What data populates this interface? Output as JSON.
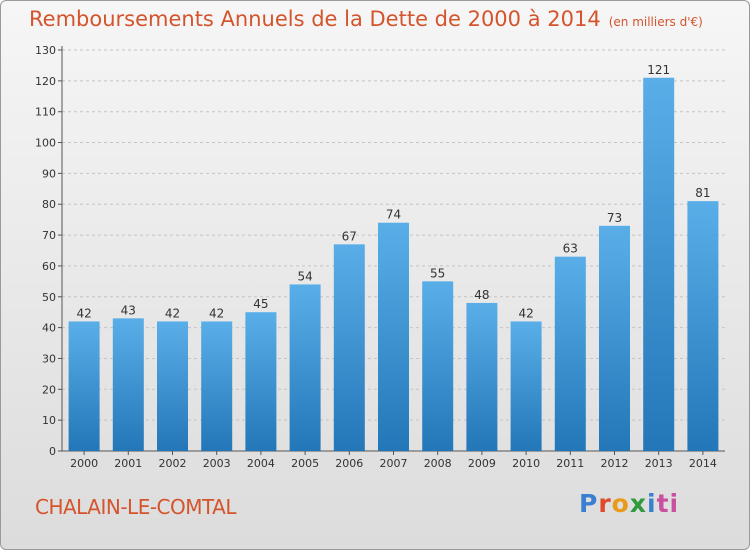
{
  "chart_data": {
    "type": "bar",
    "title": "Remboursements Annuels de la Dette de 2000 à 2014",
    "subtitle": "(en milliers d'€)",
    "categories": [
      "2000",
      "2001",
      "2002",
      "2003",
      "2004",
      "2005",
      "2006",
      "2007",
      "2008",
      "2009",
      "2010",
      "2011",
      "2012",
      "2013",
      "2014"
    ],
    "values": [
      42,
      43,
      42,
      42,
      45,
      54,
      67,
      74,
      55,
      48,
      42,
      63,
      73,
      121,
      81
    ],
    "ylim": [
      0,
      130
    ],
    "yticks": [
      0,
      10,
      20,
      30,
      40,
      50,
      60,
      70,
      80,
      90,
      100,
      110,
      120,
      130
    ],
    "grid": true,
    "bar_color_top": "#5aaee8",
    "bar_color_bottom": "#2377b8"
  },
  "footer": {
    "commune": "CHALAIN-LE-COMTAL",
    "logo_letters": [
      "P",
      "r",
      "o",
      "x",
      "i",
      "ti"
    ]
  }
}
